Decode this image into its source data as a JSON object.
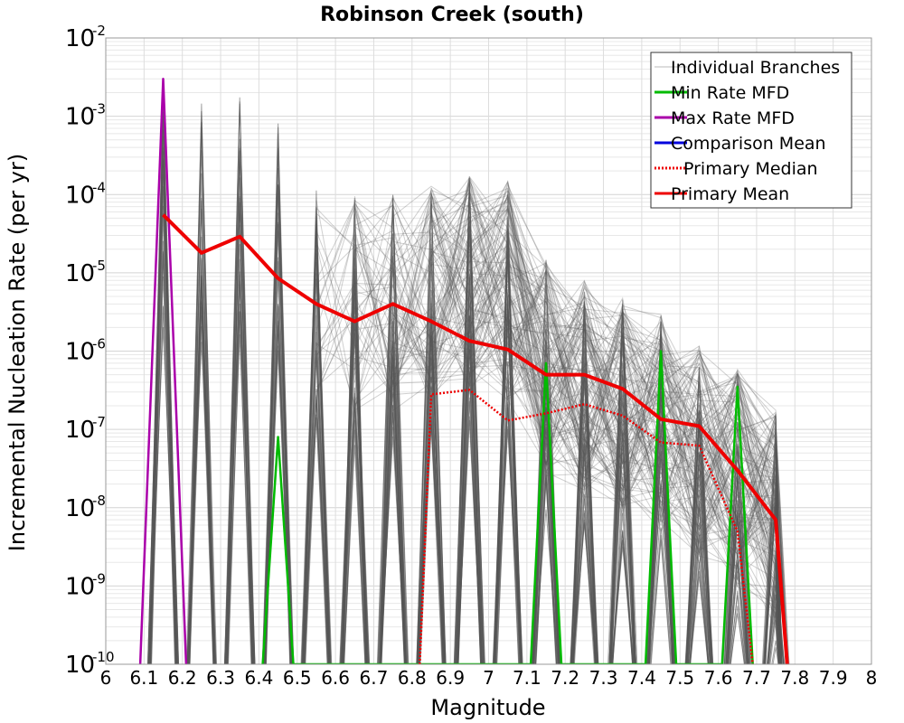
{
  "chart_data": {
    "type": "line",
    "title": "Robinson Creek (south)",
    "xlabel": "Magnitude",
    "ylabel": "Incremental Nucleation Rate (per yr)",
    "xlim": [
      6,
      8
    ],
    "ylim": [
      1e-10,
      0.01
    ],
    "y_scale": "log",
    "grid": true,
    "legend_position": "top-right",
    "x_ticks": [
      "6",
      "6.1",
      "6.2",
      "6.3",
      "6.4",
      "6.5",
      "6.6",
      "6.7",
      "6.8",
      "6.9",
      "7",
      "7.1",
      "7.2",
      "7.3",
      "7.4",
      "7.5",
      "7.6",
      "7.7",
      "7.8",
      "7.9",
      "8"
    ],
    "y_ticks": [
      {
        "base": "10",
        "exp": "-10"
      },
      {
        "base": "10",
        "exp": "-9"
      },
      {
        "base": "10",
        "exp": "-8"
      },
      {
        "base": "10",
        "exp": "-7"
      },
      {
        "base": "10",
        "exp": "-6"
      },
      {
        "base": "10",
        "exp": "-5"
      },
      {
        "base": "10",
        "exp": "-4"
      },
      {
        "base": "10",
        "exp": "-3"
      },
      {
        "base": "10",
        "exp": "-2"
      }
    ],
    "individual_branch_peaks": [
      {
        "x": 6.15,
        "y": 0.003
      },
      {
        "x": 6.25,
        "y": 0.002
      },
      {
        "x": 6.35,
        "y": 0.002
      },
      {
        "x": 6.45,
        "y": 0.001
      },
      {
        "x": 6.55,
        "y": 0.00013
      },
      {
        "x": 6.65,
        "y": 0.0001
      },
      {
        "x": 6.75,
        "y": 0.0001
      },
      {
        "x": 6.85,
        "y": 0.00013
      },
      {
        "x": 6.95,
        "y": 0.00018
      },
      {
        "x": 7.05,
        "y": 0.00015
      },
      {
        "x": 7.15,
        "y": 1.5e-05
      },
      {
        "x": 7.25,
        "y": 8e-06
      },
      {
        "x": 7.35,
        "y": 5e-06
      },
      {
        "x": 7.45,
        "y": 3e-06
      },
      {
        "x": 7.55,
        "y": 1.2e-06
      },
      {
        "x": 7.65,
        "y": 6e-07
      },
      {
        "x": 7.75,
        "y": 1.8e-07
      }
    ],
    "series": [
      {
        "name": "Individual Branches",
        "color": "#555555",
        "style": "solid",
        "x": [],
        "y": []
      },
      {
        "name": "Min Rate MFD",
        "color": "#00bb00",
        "style": "solid",
        "x": [
          6.41,
          6.45,
          6.49,
          7.11,
          7.15,
          7.19,
          7.41,
          7.45,
          7.49,
          7.61,
          7.65,
          7.69
        ],
        "y": [
          1e-10,
          8e-08,
          1e-10,
          1e-10,
          7e-07,
          1e-10,
          1e-10,
          1e-06,
          1e-10,
          1e-10,
          3.5e-07,
          1e-10
        ]
      },
      {
        "name": "Max Rate MFD",
        "color": "#aa00aa",
        "style": "solid",
        "x": [
          6.09,
          6.15,
          6.21
        ],
        "y": [
          1e-10,
          0.003,
          1e-10
        ]
      },
      {
        "name": "Comparison Mean",
        "color": "#0000dd",
        "style": "solid",
        "x": [],
        "y": []
      },
      {
        "name": "Primary Median",
        "color": "#ee0000",
        "style": "dotted",
        "x": [
          6.82,
          6.85,
          6.95,
          7.05,
          7.15,
          7.25,
          7.35,
          7.45,
          7.55,
          7.65,
          7.69
        ],
        "y": [
          1e-10,
          2.8e-07,
          3.2e-07,
          1.3e-07,
          1.6e-07,
          2.1e-07,
          1.5e-07,
          6.8e-08,
          6.2e-08,
          5e-09,
          1e-10
        ]
      },
      {
        "name": "Primary Mean",
        "color": "#ee0000",
        "style": "solid",
        "x": [
          6.15,
          6.25,
          6.35,
          6.45,
          6.55,
          6.65,
          6.75,
          6.85,
          6.95,
          7.05,
          7.15,
          7.25,
          7.35,
          7.45,
          7.55,
          7.65,
          7.75,
          7.78
        ],
        "y": [
          5.5e-05,
          1.8e-05,
          2.9e-05,
          8.5e-06,
          4e-06,
          2.4e-06,
          4e-06,
          2.4e-06,
          1.35e-06,
          1.05e-06,
          5e-07,
          5e-07,
          3.3e-07,
          1.35e-07,
          1.1e-07,
          3e-08,
          7e-09,
          1e-10
        ]
      }
    ]
  }
}
